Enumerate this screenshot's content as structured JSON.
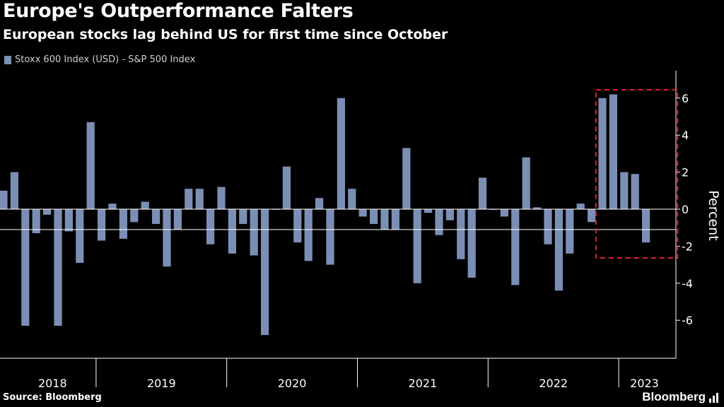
{
  "header": {
    "title": "Europe's Outperformance Falters",
    "subtitle": "European stocks lag behind US for first time since October"
  },
  "footer": {
    "source": "Source: Bloomberg",
    "brand": "Bloomberg"
  },
  "colors": {
    "background": "#000000",
    "bar": "#7b8fb5",
    "highlight_box": "#e0202a",
    "axis": "#ffffff"
  },
  "chart_data": {
    "type": "bar",
    "title": "Europe's Outperformance Falters",
    "subtitle": "European stocks lag behind US for first time since October",
    "legend": [
      "Stoxx 600 Index (USD) - S&P 500 Index"
    ],
    "legend_position": "top-left",
    "ylabel": "Percent",
    "ylim": [
      -8,
      7.2
    ],
    "yticks": [
      6,
      4,
      2,
      0,
      -2,
      -4,
      -6
    ],
    "ytick_labels": [
      "6",
      "4",
      "2",
      "0",
      "-2",
      "-4",
      "-6"
    ],
    "reference_line": -1.1,
    "year_labels": [
      "2018",
      "2019",
      "2020",
      "2021",
      "2022",
      "2023"
    ],
    "year_boundaries": [
      1,
      9,
      21,
      33,
      45,
      57,
      63
    ],
    "highlight_range": [
      55,
      61
    ],
    "series": [
      {
        "name": "Stoxx 600 Index (USD) - S&P 500 Index",
        "values": [
          1.0,
          2.0,
          -6.3,
          -1.3,
          -0.3,
          -6.3,
          -1.2,
          -2.9,
          4.7,
          -1.7,
          0.3,
          -1.6,
          -0.7,
          0.4,
          -0.8,
          -3.1,
          -1.1,
          1.1,
          1.1,
          -1.9,
          1.2,
          -2.4,
          -0.8,
          -2.5,
          -6.8,
          0.0,
          2.3,
          -1.8,
          -2.8,
          0.6,
          -3.0,
          6.0,
          1.1,
          -0.4,
          -0.8,
          -1.1,
          -1.1,
          3.3,
          -4.0,
          -0.2,
          -1.4,
          -0.6,
          -2.7,
          -3.7,
          1.7,
          0.0,
          -0.4,
          -4.1,
          2.8,
          0.1,
          -1.9,
          -4.4,
          -2.4,
          0.3,
          -0.7,
          6.0,
          6.2,
          2.0,
          1.9,
          -1.8
        ]
      }
    ]
  }
}
